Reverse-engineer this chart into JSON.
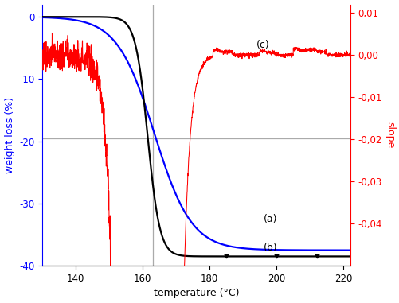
{
  "xlim": [
    130,
    222
  ],
  "ylim_left": [
    -40,
    2
  ],
  "ylim_right": [
    -0.05,
    0.012
  ],
  "xlabel": "temperature (°C)",
  "ylabel_left": "weight loss (%)",
  "ylabel_right": "slope",
  "vline_x": 163,
  "hline_y": -19.5,
  "label_a": "(a)",
  "label_b": "(b)",
  "label_c": "(c)",
  "color_a": "#0000FF",
  "color_b": "#000000",
  "color_c": "#FF0000",
  "tick_color_left": "#0000FF",
  "tick_color_right": "#FF0000",
  "xticks": [
    140,
    160,
    180,
    200,
    220
  ],
  "yticks_left": [
    0,
    -10,
    -20,
    -30,
    -40
  ],
  "yticks_right": [
    0.01,
    0.0,
    -0.01,
    -0.02,
    -0.03,
    -0.04
  ],
  "ref_line_color": "#AAAAAA",
  "background": "#FFFFFF",
  "figsize": [
    5.02,
    3.81
  ],
  "dpi": 100
}
